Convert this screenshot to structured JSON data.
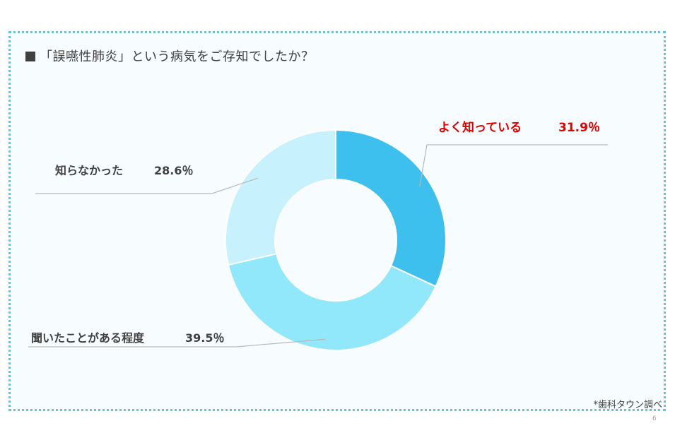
{
  "title": "「誤嚥性肺炎」という病気をご存知でしたか？",
  "source_note": "*歯科タウン調べ",
  "page_number": "6",
  "colors": {
    "frame": "#5bc8de",
    "highlight_label": "#e00000",
    "label": "#404040"
  },
  "chart_data": {
    "type": "pie",
    "donut": true,
    "title": "「誤嚥性肺炎」という病気をご存知でしたか？",
    "unit": "%",
    "slices": [
      {
        "label": "よく知っている",
        "value": 31.9,
        "display": "31.9％",
        "color": "#3ec0ef",
        "highlight": true
      },
      {
        "label": "聞いたことがある程度",
        "value": 39.5,
        "display": "39.5％",
        "color": "#92e8fb",
        "highlight": false
      },
      {
        "label": "知らなかった",
        "value": 28.6,
        "display": "28.6％",
        "color": "#c6f1fd",
        "highlight": false
      }
    ]
  }
}
